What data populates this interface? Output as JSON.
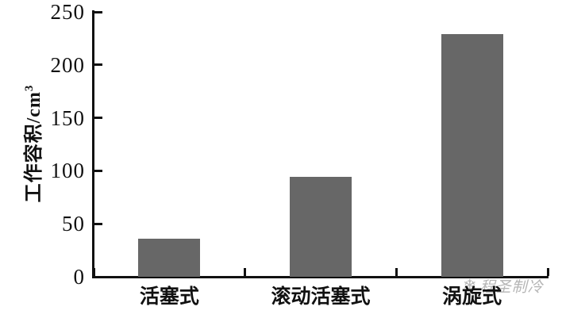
{
  "chart_data": {
    "type": "bar",
    "title": "",
    "categories": [
      "活塞式",
      "滚动活塞式",
      "涡旋式"
    ],
    "values": [
      36,
      94,
      229
    ],
    "xlabel": "",
    "ylabel": "工作容积/cm³",
    "ylabel_main": "工作容积/cm",
    "ylabel_sup": "3",
    "ylim": [
      0,
      250
    ],
    "yticks": [
      0,
      50,
      100,
      150,
      200,
      250
    ],
    "bar_color": "#676767",
    "axis_color": "#111111",
    "grid": false,
    "legend": "none"
  },
  "watermark": {
    "icon": "snowflake-icon",
    "icon_glyph": "❄",
    "text": "程圣制冷",
    "color": "#b5b5b5"
  }
}
